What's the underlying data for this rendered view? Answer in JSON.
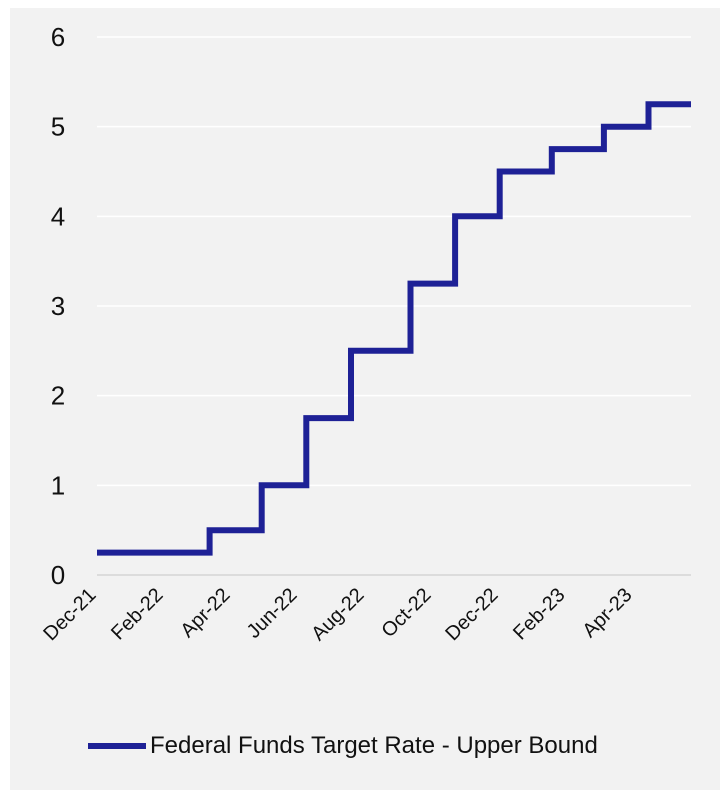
{
  "chart_data": {
    "type": "line",
    "step": true,
    "title": "",
    "xlabel": "",
    "ylabel": "",
    "ylim": [
      0,
      6
    ],
    "yticks": [
      0,
      1,
      2,
      3,
      4,
      5,
      6
    ],
    "xticks": [
      "Dec-21",
      "Feb-22",
      "Apr-22",
      "Jun-22",
      "Aug-22",
      "Oct-22",
      "Dec-22",
      "Feb-23",
      "Apr-23"
    ],
    "grid": true,
    "legend_position": "bottom",
    "series": [
      {
        "name": "Federal Funds Target Rate - Upper Bound",
        "color": "#1e2196",
        "points": [
          {
            "date": "2021-12-01",
            "value": 0.25
          },
          {
            "date": "2022-03-17",
            "value": 0.5
          },
          {
            "date": "2022-05-05",
            "value": 1.0
          },
          {
            "date": "2022-06-16",
            "value": 1.75
          },
          {
            "date": "2022-07-28",
            "value": 2.5
          },
          {
            "date": "2022-09-22",
            "value": 3.25
          },
          {
            "date": "2022-11-03",
            "value": 4.0
          },
          {
            "date": "2022-12-15",
            "value": 4.5
          },
          {
            "date": "2023-02-02",
            "value": 4.75
          },
          {
            "date": "2023-03-23",
            "value": 5.0
          },
          {
            "date": "2023-05-04",
            "value": 5.25
          },
          {
            "date": "2023-06-13",
            "value": 5.25
          }
        ]
      }
    ]
  },
  "legend": {
    "label": "Federal Funds Target Rate - Upper Bound",
    "color": "#1e2196"
  }
}
